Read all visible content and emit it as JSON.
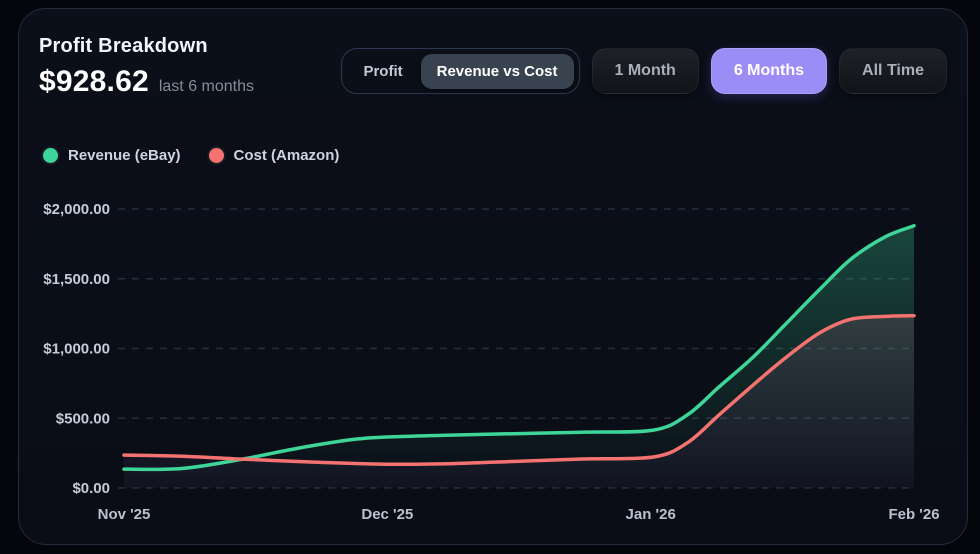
{
  "header": {
    "title": "Profit Breakdown",
    "amount": "$928.62",
    "caption": "last 6 months"
  },
  "view_toggle": {
    "options": [
      {
        "label": "Profit",
        "active": false
      },
      {
        "label": "Revenue vs Cost",
        "active": true
      }
    ]
  },
  "range_filters": [
    {
      "label": "1 Month",
      "active": false
    },
    {
      "label": "6 Months",
      "active": true
    },
    {
      "label": "All Time",
      "active": false
    }
  ],
  "legend": [
    {
      "label": "Revenue (eBay)",
      "color": "#3ed598"
    },
    {
      "label": "Cost (Amazon)",
      "color": "#f4726f"
    }
  ],
  "colors": {
    "accent_purple": "#9c8df6",
    "revenue_green": "#3ed598",
    "cost_red": "#f4726f",
    "card_background": "#0a0e17",
    "page_background": "#04060c",
    "active_pill": "#39424f"
  },
  "chart_data": {
    "type": "area",
    "title": "Profit Breakdown — Revenue vs Cost, last 6 months",
    "xlabel": "",
    "ylabel": "",
    "x_unit": "months (0 = Nov '25, 3 = Feb '26)",
    "x_tick_labels": [
      "Nov '25",
      "Dec '25",
      "Jan '26",
      "Feb '26"
    ],
    "x_tick_positions": [
      0,
      1,
      2,
      3
    ],
    "y_tick_values": [
      0,
      500,
      1000,
      1500,
      2000
    ],
    "y_tick_labels": [
      "$0.00",
      "$500.00",
      "$1,000.00",
      "$1,500.00",
      "$2,000.00"
    ],
    "ylim": [
      0,
      2000
    ],
    "grid": "horizontal dashed",
    "legend_position": "top-left",
    "series": [
      {
        "name": "Revenue (eBay)",
        "color": "#3ed598",
        "fill": [
          "rgba(62,213,152,0.30)",
          "rgba(62,213,152,0.00)"
        ],
        "points": [
          [
            0,
            135
          ],
          [
            0.22,
            140
          ],
          [
            0.45,
            207
          ],
          [
            0.66,
            285
          ],
          [
            0.88,
            350
          ],
          [
            1.04,
            368
          ],
          [
            1.26,
            380
          ],
          [
            1.5,
            390
          ],
          [
            1.74,
            400
          ],
          [
            2.01,
            415
          ],
          [
            2.14,
            525
          ],
          [
            2.26,
            725
          ],
          [
            2.39,
            940
          ],
          [
            2.51,
            1170
          ],
          [
            2.64,
            1420
          ],
          [
            2.76,
            1640
          ],
          [
            2.89,
            1800
          ],
          [
            3,
            1880
          ]
        ]
      },
      {
        "name": "Cost (Amazon)",
        "color": "#f4726f",
        "fill": [
          "rgba(244,114,111,0.22)",
          "rgba(150,120,210,0.05)"
        ],
        "points": [
          [
            0,
            236
          ],
          [
            0.22,
            228
          ],
          [
            0.45,
            207
          ],
          [
            0.66,
            190
          ],
          [
            0.88,
            176
          ],
          [
            1.04,
            170
          ],
          [
            1.26,
            176
          ],
          [
            1.5,
            192
          ],
          [
            1.74,
            208
          ],
          [
            2.01,
            222
          ],
          [
            2.14,
            325
          ],
          [
            2.26,
            525
          ],
          [
            2.39,
            740
          ],
          [
            2.51,
            930
          ],
          [
            2.64,
            1110
          ],
          [
            2.76,
            1210
          ],
          [
            2.89,
            1230
          ],
          [
            3,
            1235
          ]
        ]
      }
    ]
  }
}
